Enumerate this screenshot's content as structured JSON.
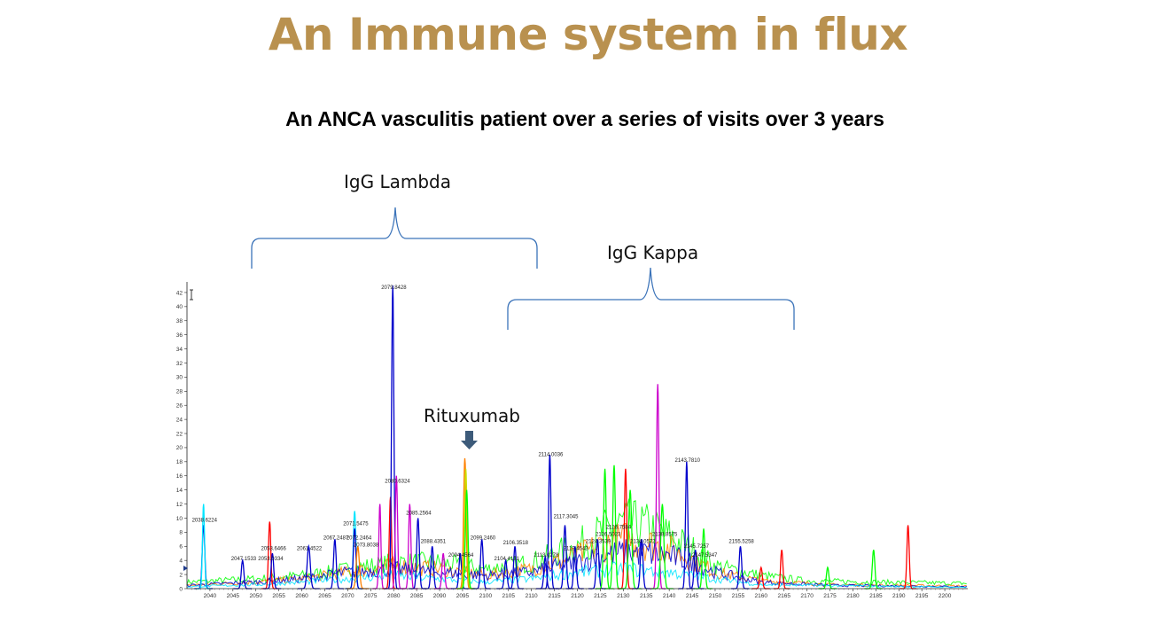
{
  "slide": {
    "title": "An Immune system in flux",
    "subtitle": "An ANCA vasculitis patient over a series of visits over 3 years"
  },
  "annotations": {
    "lambda": "IgG Lambda",
    "kappa": "IgG Kappa",
    "rituximab": "Rituxumab"
  },
  "chart_data": {
    "type": "line",
    "x_range": [
      2035,
      2205
    ],
    "y_range": [
      0,
      43
    ],
    "x_ticks": [
      2040,
      2045,
      2050,
      2055,
      2060,
      2065,
      2070,
      2075,
      2080,
      2085,
      2090,
      2095,
      2100,
      2105,
      2110,
      2115,
      2120,
      2125,
      2130,
      2135,
      2140,
      2145,
      2150,
      2155,
      2160,
      2165,
      2170,
      2175,
      2180,
      2185,
      2190,
      2195,
      2200
    ],
    "y_ticks": [
      0,
      2,
      4,
      6,
      8,
      10,
      12,
      14,
      16,
      18,
      20,
      22,
      24,
      26,
      28,
      30,
      32,
      34,
      36,
      38,
      40,
      42
    ],
    "colors": [
      "#00ff00",
      "#ff8000",
      "#00e5ff",
      "#2b8cff",
      "#ff0000",
      "#cc00cc",
      "#0000cc",
      "#ccdd00"
    ],
    "peak_labels": [
      {
        "x": 2038.6224,
        "y": 9.5,
        "label": "2038.6224"
      },
      {
        "x": 2047.1533,
        "y": 4.0,
        "label": "2047.1533"
      },
      {
        "x": 2053.0334,
        "y": 4.0,
        "label": "2053.0334"
      },
      {
        "x": 2053.6466,
        "y": 5.5,
        "label": "2053.6466"
      },
      {
        "x": 2061.4522,
        "y": 5.5,
        "label": "2061.4522"
      },
      {
        "x": 2067.2487,
        "y": 7.0,
        "label": "2067.2487"
      },
      {
        "x": 2071.5475,
        "y": 9.0,
        "label": "2071.5475"
      },
      {
        "x": 2072.2464,
        "y": 7.0,
        "label": "2072.2464"
      },
      {
        "x": 2073.8038,
        "y": 6.0,
        "label": "2073.8038"
      },
      {
        "x": 2079.8428,
        "y": 42.5,
        "label": "2079.8428"
      },
      {
        "x": 2080.6324,
        "y": 15.0,
        "label": "2080.6324"
      },
      {
        "x": 2085.2564,
        "y": 10.5,
        "label": "2085.2564"
      },
      {
        "x": 2088.4351,
        "y": 6.5,
        "label": "2088.4351"
      },
      {
        "x": 2094.4564,
        "y": 4.5,
        "label": "2094.4564"
      },
      {
        "x": 2099.246,
        "y": 7.0,
        "label": "2099.2460"
      },
      {
        "x": 2104.4131,
        "y": 4.0,
        "label": "2104.4131"
      },
      {
        "x": 2106.3518,
        "y": 6.3,
        "label": "2106.3518"
      },
      {
        "x": 2113.0278,
        "y": 4.5,
        "label": "2113.0278"
      },
      {
        "x": 2114.0036,
        "y": 18.8,
        "label": "2114.0036"
      },
      {
        "x": 2117.3045,
        "y": 10.0,
        "label": "2117.3045"
      },
      {
        "x": 2119.4543,
        "y": 5.5,
        "label": "2119.4543"
      },
      {
        "x": 2124.3539,
        "y": 6.5,
        "label": "2124.3539"
      },
      {
        "x": 2126.5023,
        "y": 7.5,
        "label": "2126.5023"
      },
      {
        "x": 2128.7584,
        "y": 8.5,
        "label": "2128.7584"
      },
      {
        "x": 2134.0572,
        "y": 6.5,
        "label": "2134.0572"
      },
      {
        "x": 2138.8575,
        "y": 7.5,
        "label": "2138.8575"
      },
      {
        "x": 2143.781,
        "y": 18.0,
        "label": "2143.7810"
      },
      {
        "x": 2145.7257,
        "y": 5.8,
        "label": "2145.7257"
      },
      {
        "x": 2147.5347,
        "y": 4.5,
        "label": "2147.5347"
      },
      {
        "x": 2155.5258,
        "y": 6.5,
        "label": "2155.5258"
      }
    ],
    "peaks": [
      {
        "x": 2038.6,
        "y": 9.0,
        "color": "#0000cc",
        "w": 0.5
      },
      {
        "x": 2038.6,
        "y": 12.0,
        "color": "#00e5ff",
        "w": 0.4
      },
      {
        "x": 2047.1,
        "y": 4.0,
        "color": "#0000cc",
        "w": 0.5
      },
      {
        "x": 2053.0,
        "y": 9.5,
        "color": "#ff0000",
        "w": 0.45
      },
      {
        "x": 2053.6,
        "y": 5.0,
        "color": "#0000cc",
        "w": 0.5
      },
      {
        "x": 2061.5,
        "y": 6.0,
        "color": "#0000cc",
        "w": 0.6
      },
      {
        "x": 2067.2,
        "y": 7.0,
        "color": "#0000cc",
        "w": 0.5
      },
      {
        "x": 2071.5,
        "y": 11.0,
        "color": "#00e5ff",
        "w": 0.5
      },
      {
        "x": 2071.5,
        "y": 8.5,
        "color": "#0000cc",
        "w": 0.5
      },
      {
        "x": 2072.2,
        "y": 6.0,
        "color": "#ff8000",
        "w": 0.6
      },
      {
        "x": 2077.0,
        "y": 12.0,
        "color": "#cc00cc",
        "w": 0.4
      },
      {
        "x": 2079.3,
        "y": 13.0,
        "color": "#ff0000",
        "w": 0.45
      },
      {
        "x": 2079.8,
        "y": 43.0,
        "color": "#0000cc",
        "w": 0.45
      },
      {
        "x": 2080.6,
        "y": 16.0,
        "color": "#cc00cc",
        "w": 0.45
      },
      {
        "x": 2083.5,
        "y": 12.0,
        "color": "#cc00cc",
        "w": 0.45
      },
      {
        "x": 2085.3,
        "y": 10.0,
        "color": "#0000cc",
        "w": 0.5
      },
      {
        "x": 2088.4,
        "y": 6.0,
        "color": "#0000cc",
        "w": 0.5
      },
      {
        "x": 2090.8,
        "y": 5.0,
        "color": "#cc00cc",
        "w": 0.5
      },
      {
        "x": 2094.5,
        "y": 5.0,
        "color": "#0000cc",
        "w": 0.5
      },
      {
        "x": 2095.5,
        "y": 18.5,
        "color": "#ff8000",
        "w": 0.5
      },
      {
        "x": 2095.7,
        "y": 17.0,
        "color": "#ccdd00",
        "w": 0.5
      },
      {
        "x": 2095.9,
        "y": 14.0,
        "color": "#00ff00",
        "w": 0.5
      },
      {
        "x": 2099.2,
        "y": 7.0,
        "color": "#0000cc",
        "w": 0.5
      },
      {
        "x": 2104.4,
        "y": 4.0,
        "color": "#0000cc",
        "w": 0.5
      },
      {
        "x": 2106.4,
        "y": 6.0,
        "color": "#0000cc",
        "w": 0.5
      },
      {
        "x": 2113.0,
        "y": 4.5,
        "color": "#0000cc",
        "w": 0.5
      },
      {
        "x": 2114.0,
        "y": 19.0,
        "color": "#0000cc",
        "w": 0.45
      },
      {
        "x": 2117.3,
        "y": 9.0,
        "color": "#0000cc",
        "w": 0.5
      },
      {
        "x": 2119.5,
        "y": 6.0,
        "color": "#0000cc",
        "w": 0.5
      },
      {
        "x": 2124.4,
        "y": 7.0,
        "color": "#0000cc",
        "w": 0.5
      },
      {
        "x": 2126.0,
        "y": 17.0,
        "color": "#00ff00",
        "w": 0.5
      },
      {
        "x": 2128.0,
        "y": 17.5,
        "color": "#00ff00",
        "w": 0.5
      },
      {
        "x": 2130.5,
        "y": 17.0,
        "color": "#ff0000",
        "w": 0.45
      },
      {
        "x": 2131.5,
        "y": 14.0,
        "color": "#00ff00",
        "w": 0.6
      },
      {
        "x": 2134.0,
        "y": 7.0,
        "color": "#0000cc",
        "w": 0.5
      },
      {
        "x": 2137.5,
        "y": 29.0,
        "color": "#cc00cc",
        "w": 0.45
      },
      {
        "x": 2138.5,
        "y": 12.0,
        "color": "#00ff00",
        "w": 0.6
      },
      {
        "x": 2143.8,
        "y": 18.0,
        "color": "#0000cc",
        "w": 0.45
      },
      {
        "x": 2145.7,
        "y": 5.5,
        "color": "#0000cc",
        "w": 0.5
      },
      {
        "x": 2147.5,
        "y": 8.5,
        "color": "#00ff00",
        "w": 0.5
      },
      {
        "x": 2155.5,
        "y": 6.0,
        "color": "#0000cc",
        "w": 0.5
      },
      {
        "x": 2160.0,
        "y": 3.0,
        "color": "#ff0000",
        "w": 0.5
      },
      {
        "x": 2164.5,
        "y": 5.5,
        "color": "#ff0000",
        "w": 0.45
      },
      {
        "x": 2174.5,
        "y": 3.0,
        "color": "#00ff00",
        "w": 0.5
      },
      {
        "x": 2184.5,
        "y": 5.5,
        "color": "#00ff00",
        "w": 0.5
      },
      {
        "x": 2192.0,
        "y": 9.0,
        "color": "#ff0000",
        "w": 0.45
      }
    ],
    "envelopes": [
      {
        "color": "#00ff00",
        "points": [
          [
            2035,
            1.0
          ],
          [
            2050,
            1.5
          ],
          [
            2060,
            2.0
          ],
          [
            2070,
            3.0
          ],
          [
            2080,
            4.0
          ],
          [
            2090,
            4.0
          ],
          [
            2100,
            3.0
          ],
          [
            2110,
            4.0
          ],
          [
            2120,
            6.5
          ],
          [
            2125,
            8.5
          ],
          [
            2130,
            10.0
          ],
          [
            2135,
            9.5
          ],
          [
            2140,
            8.0
          ],
          [
            2145,
            6.0
          ],
          [
            2150,
            3.5
          ],
          [
            2160,
            2.0
          ],
          [
            2170,
            1.2
          ],
          [
            2185,
            1.0
          ],
          [
            2205,
            0.8
          ]
        ]
      },
      {
        "color": "#ff8000",
        "points": [
          [
            2035,
            0.5
          ],
          [
            2050,
            1.0
          ],
          [
            2060,
            1.5
          ],
          [
            2070,
            2.5
          ],
          [
            2080,
            3.5
          ],
          [
            2090,
            3.0
          ],
          [
            2100,
            2.0
          ],
          [
            2110,
            3.0
          ],
          [
            2120,
            5.0
          ],
          [
            2125,
            6.5
          ],
          [
            2130,
            7.5
          ],
          [
            2135,
            7.0
          ],
          [
            2140,
            6.0
          ],
          [
            2145,
            4.5
          ],
          [
            2150,
            2.5
          ],
          [
            2160,
            1.2
          ],
          [
            2175,
            0.6
          ],
          [
            2205,
            0.4
          ]
        ]
      },
      {
        "color": "#0000cc",
        "points": [
          [
            2035,
            0.5
          ],
          [
            2050,
            1.0
          ],
          [
            2060,
            1.5
          ],
          [
            2070,
            2.5
          ],
          [
            2080,
            3.0
          ],
          [
            2090,
            2.5
          ],
          [
            2100,
            2.0
          ],
          [
            2110,
            2.5
          ],
          [
            2120,
            4.0
          ],
          [
            2125,
            5.0
          ],
          [
            2130,
            5.5
          ],
          [
            2135,
            5.5
          ],
          [
            2140,
            5.0
          ],
          [
            2145,
            4.0
          ],
          [
            2150,
            2.5
          ],
          [
            2160,
            1.0
          ],
          [
            2175,
            0.5
          ],
          [
            2205,
            0.3
          ]
        ]
      },
      {
        "color": "#00e5ff",
        "points": [
          [
            2035,
            0.3
          ],
          [
            2050,
            0.6
          ],
          [
            2060,
            1.0
          ],
          [
            2070,
            1.5
          ],
          [
            2080,
            2.0
          ],
          [
            2090,
            1.5
          ],
          [
            2100,
            1.0
          ],
          [
            2110,
            1.5
          ],
          [
            2120,
            2.5
          ],
          [
            2130,
            3.0
          ],
          [
            2140,
            2.5
          ],
          [
            2150,
            1.5
          ],
          [
            2160,
            0.6
          ],
          [
            2205,
            0.2
          ]
        ]
      }
    ]
  }
}
